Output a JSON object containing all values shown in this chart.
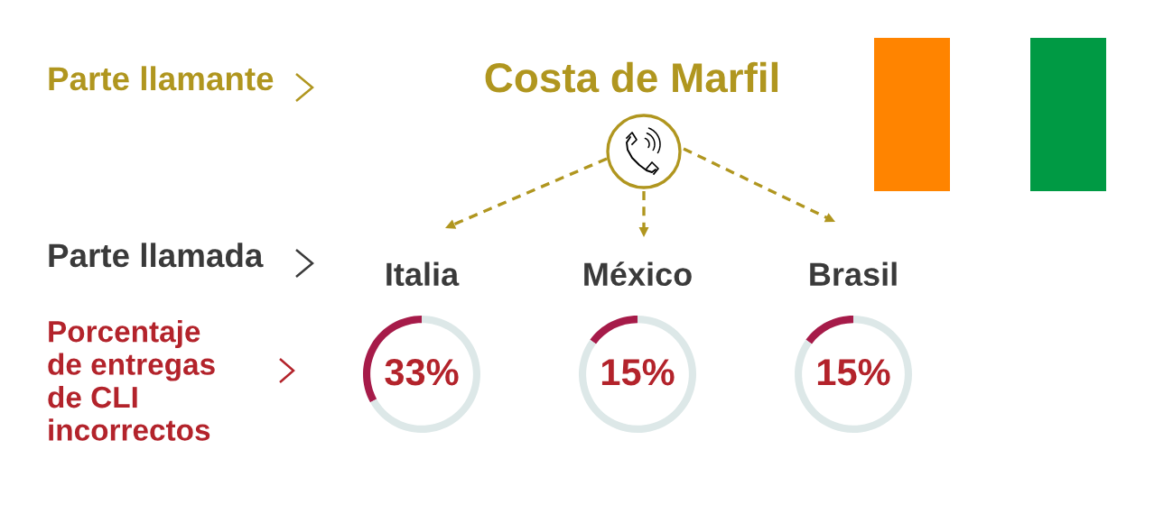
{
  "chart_data": [
    {
      "type": "other",
      "title": "Costa de Marfil",
      "annotations": [
        "Parte llamante",
        "Parte llamada",
        "Porcentaje\nde entregas\nde CLI\nincorrectos"
      ]
    },
    {
      "type": "donut",
      "title": "Italia",
      "categories": [
        null,
        null
      ],
      "values": [
        33,
        67
      ],
      "colors": [
        "#a61b49",
        "#dde8e8"
      ],
      "value_labels": [
        "33%",
        null
      ]
    },
    {
      "type": "donut",
      "title": "México",
      "categories": [
        null,
        null
      ],
      "values": [
        15,
        85
      ],
      "colors": [
        "#a61b49",
        "#dde8e8"
      ],
      "value_labels": [
        "15%",
        null
      ]
    },
    {
      "type": "donut",
      "title": "Brasil",
      "categories": [
        null,
        null
      ],
      "values": [
        15,
        85
      ],
      "colors": [
        "#a61b49",
        "#dde8e8"
      ],
      "value_labels": [
        "15%",
        null
      ]
    }
  ]
}
